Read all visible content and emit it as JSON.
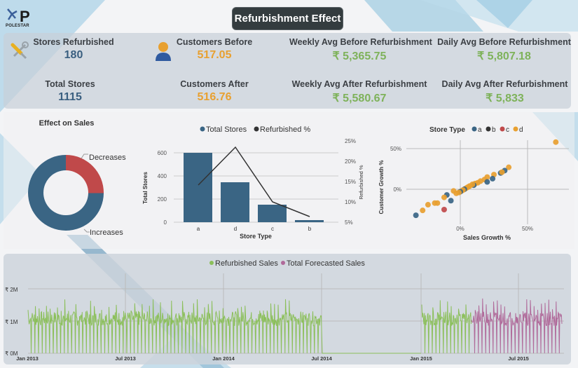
{
  "header": {
    "title": "Refurbishment Effect",
    "logo_text": "POLESTAR",
    "logo_letter": "P"
  },
  "kpis": {
    "stores_refurbished": {
      "label": "Stores Refurbished",
      "value": "180",
      "icon": "tools-icon"
    },
    "total_stores": {
      "label": "Total Stores",
      "value": "1115"
    },
    "customers_before": {
      "label": "Customers Before",
      "value": "517.05",
      "icon": "user-icon"
    },
    "customers_after": {
      "label": "Customers After",
      "value": "516.76"
    },
    "weekly_before": {
      "label": "Weekly Avg Before Refurbishment",
      "value": "₹ 5,365.75"
    },
    "weekly_after": {
      "label": "Weekly Avg After Refurbishment",
      "value": "₹ 5,580.67"
    },
    "daily_before": {
      "label": "Daily Avg Before Refurbishment",
      "value": "₹ 5,807.18"
    },
    "daily_after": {
      "label": "Daily Avg After Refurbishment",
      "value": "₹ 5,833"
    }
  },
  "colors": {
    "primary_blue": "#3a6584",
    "red": "#c0494a",
    "orange": "#e8a030",
    "green": "#8bbf5a",
    "purple": "#b06a9a",
    "dark": "#343c3f"
  },
  "chart_data": [
    {
      "type": "pie",
      "title": "Effect on Sales",
      "categories": [
        "Decreases",
        "Increases"
      ],
      "values": [
        24,
        76
      ],
      "colors": [
        "#c0494a",
        "#3a6584"
      ],
      "donut": true
    },
    {
      "type": "bar",
      "title": "",
      "legend": [
        "Total Stores",
        "Refurbished %"
      ],
      "categories": [
        "a",
        "d",
        "c",
        "b"
      ],
      "series": [
        {
          "name": "Total Stores",
          "type": "bar",
          "values": [
            602,
            348,
            148,
            17
          ]
        },
        {
          "name": "Refurbished %",
          "type": "line",
          "axis": "right",
          "values": [
            14.1,
            23.3,
            9.5,
            5.9
          ]
        }
      ],
      "xlabel": "Store Type",
      "ylabel": "Total Stores",
      "y2label": "Refurbished %",
      "ylim": [
        0,
        700
      ],
      "yticks": [
        "0",
        "200",
        "400",
        "600"
      ],
      "y2lim": [
        5,
        25
      ],
      "y2ticks": [
        "5%",
        "10%",
        "15%",
        "20%",
        "25%"
      ]
    },
    {
      "type": "scatter",
      "title": "Store Type",
      "legend": [
        "a",
        "b",
        "c",
        "d"
      ],
      "legend_colors": [
        "#3a6584",
        "#333333",
        "#c0494a",
        "#e8a030"
      ],
      "xlabel": "Sales Growth %",
      "ylabel": "Customer Growth %",
      "xticks": [
        "0%",
        "50%"
      ],
      "yticks": [
        "0%",
        "50%"
      ],
      "points": [
        {
          "type": "d",
          "x": 71,
          "y": 58
        },
        {
          "type": "d",
          "x": 36,
          "y": 27
        },
        {
          "type": "a",
          "x": 33,
          "y": 23
        },
        {
          "type": "a",
          "x": 30,
          "y": 20
        },
        {
          "type": "d",
          "x": 31,
          "y": 21
        },
        {
          "type": "d",
          "x": 25,
          "y": 18
        },
        {
          "type": "a",
          "x": 24,
          "y": 13
        },
        {
          "type": "d",
          "x": 20,
          "y": 15
        },
        {
          "type": "d",
          "x": 18,
          "y": 12
        },
        {
          "type": "a",
          "x": 20,
          "y": 9
        },
        {
          "type": "d",
          "x": 15,
          "y": 10
        },
        {
          "type": "d",
          "x": 13,
          "y": 8
        },
        {
          "type": "d",
          "x": 11,
          "y": 7
        },
        {
          "type": "a",
          "x": 10,
          "y": 5
        },
        {
          "type": "d",
          "x": 9,
          "y": 6
        },
        {
          "type": "d",
          "x": 7,
          "y": 4
        },
        {
          "type": "d",
          "x": 6,
          "y": 3
        },
        {
          "type": "d",
          "x": 5,
          "y": 2
        },
        {
          "type": "d",
          "x": 4,
          "y": 1
        },
        {
          "type": "a",
          "x": 3,
          "y": 0
        },
        {
          "type": "d",
          "x": 2,
          "y": -1
        },
        {
          "type": "d",
          "x": 1,
          "y": -2
        },
        {
          "type": "a",
          "x": 0,
          "y": -3
        },
        {
          "type": "d",
          "x": -1,
          "y": -4
        },
        {
          "type": "d",
          "x": -3,
          "y": -5
        },
        {
          "type": "d",
          "x": -5,
          "y": -2
        },
        {
          "type": "a",
          "x": -10,
          "y": -7
        },
        {
          "type": "a",
          "x": -7,
          "y": -14
        },
        {
          "type": "d",
          "x": -12,
          "y": -10
        },
        {
          "type": "d",
          "x": -17,
          "y": -17
        },
        {
          "type": "d",
          "x": -19,
          "y": -17
        },
        {
          "type": "d",
          "x": -24,
          "y": -19
        },
        {
          "type": "d",
          "x": -28,
          "y": -26
        },
        {
          "type": "c",
          "x": -12,
          "y": -25
        },
        {
          "type": "a",
          "x": -33,
          "y": -32
        }
      ]
    },
    {
      "type": "line",
      "title": "",
      "legend": [
        "Refurbished Sales",
        "Total Forecasted Sales"
      ],
      "xticks": [
        "Jan 2013",
        "Jul 2013",
        "Jan 2014",
        "Jul 2014",
        "Jan 2015",
        "Jul 2015"
      ],
      "yticks": [
        "₹ 0M",
        "₹ 1M",
        "₹ 2M"
      ],
      "ylim": [
        0,
        2.4
      ],
      "series": [
        {
          "name": "Refurbished Sales",
          "color": "#8bbf5a",
          "range": [
            "Jan 2013",
            "Jul 2014"
          ],
          "typical_peak_M": 1.4,
          "baseline_M": 1.0,
          "note": "daily values with weekly zero dips; zero from Jul 2014 to Jan 2015"
        },
        {
          "name": "Refurbished Sales",
          "color": "#8bbf5a",
          "range": [
            "Jan 2015",
            "Apr 2015"
          ],
          "typical_peak_M": 1.4,
          "baseline_M": 1.0
        },
        {
          "name": "Total Forecasted Sales",
          "color": "#b06a9a",
          "range": [
            "Apr 2015",
            "Sep 2015"
          ],
          "typical_peak_M": 1.4,
          "baseline_M": 1.0
        }
      ]
    }
  ]
}
